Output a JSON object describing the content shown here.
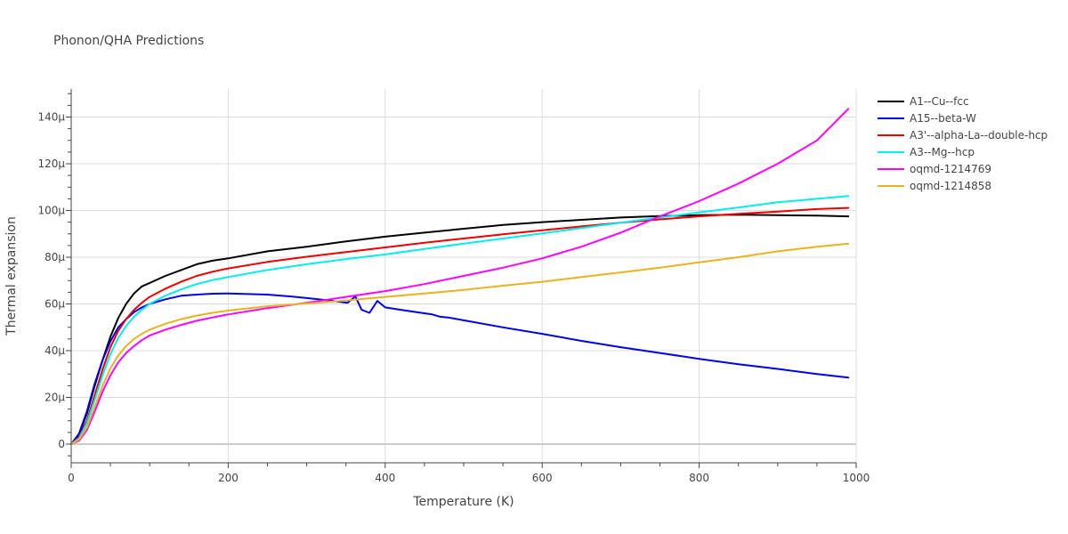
{
  "chart_data": {
    "type": "line",
    "title": "Phonon/QHA Predictions",
    "xlabel": "Temperature (K)",
    "ylabel": "Thermal expansion",
    "xlim": [
      0,
      1000
    ],
    "ylim": [
      -8e-06,
      0.000152
    ],
    "x_ticks": [
      0,
      200,
      400,
      600,
      800,
      1000
    ],
    "x_tick_labels": [
      "0",
      "200",
      "400",
      "600",
      "800",
      "1000"
    ],
    "y_ticks": [
      0,
      2e-05,
      4e-05,
      6e-05,
      8e-05,
      0.0001,
      0.00012,
      0.00014
    ],
    "y_tick_labels": [
      "0",
      "20µ",
      "40µ",
      "60µ",
      "80µ",
      "100µ",
      "120µ",
      "140µ"
    ],
    "grid": true,
    "legend_position": "right",
    "series": [
      {
        "name": "A1--Cu--fcc",
        "color": "#000000",
        "x": [
          0,
          10,
          20,
          30,
          40,
          50,
          60,
          70,
          80,
          90,
          100,
          120,
          140,
          160,
          180,
          200,
          250,
          300,
          350,
          400,
          450,
          500,
          550,
          600,
          650,
          700,
          750,
          800,
          850,
          900,
          950,
          990
        ],
        "y": [
          0,
          4e-06,
          1.3e-05,
          2.5e-05,
          3.6e-05,
          4.6e-05,
          5.4e-05,
          6e-05,
          6.45e-05,
          6.75e-05,
          6.9e-05,
          7.2e-05,
          7.45e-05,
          7.7e-05,
          7.85e-05,
          7.95e-05,
          8.25e-05,
          8.45e-05,
          8.68e-05,
          8.88e-05,
          9.05e-05,
          9.22e-05,
          9.38e-05,
          9.5e-05,
          9.6e-05,
          9.7e-05,
          9.76e-05,
          9.8e-05,
          9.82e-05,
          9.8e-05,
          9.78e-05,
          9.75e-05
        ]
      },
      {
        "name": "A15--beta-W",
        "color": "#0000ee",
        "x": [
          0,
          10,
          20,
          30,
          40,
          50,
          60,
          70,
          80,
          90,
          100,
          120,
          140,
          160,
          180,
          200,
          220,
          250,
          280,
          300,
          320,
          340,
          352,
          362,
          370,
          380,
          390,
          400,
          420,
          440,
          450,
          460,
          470,
          480,
          500,
          550,
          600,
          650,
          700,
          750,
          800,
          850,
          900,
          950,
          990
        ],
        "y": [
          0,
          4.5e-06,
          1.4e-05,
          2.6e-05,
          3.6e-05,
          4.4e-05,
          5e-05,
          5.35e-05,
          5.65e-05,
          5.85e-05,
          6e-05,
          6.2e-05,
          6.35e-05,
          6.4e-05,
          6.44e-05,
          6.45e-05,
          6.43e-05,
          6.4e-05,
          6.32e-05,
          6.25e-05,
          6.18e-05,
          6.1e-05,
          6.05e-05,
          6.32e-05,
          5.75e-05,
          5.62e-05,
          6.13e-05,
          5.85e-05,
          5.75e-05,
          5.65e-05,
          5.6e-05,
          5.55e-05,
          5.45e-05,
          5.42e-05,
          5.3e-05,
          5e-05,
          4.72e-05,
          4.42e-05,
          4.15e-05,
          3.9e-05,
          3.65e-05,
          3.42e-05,
          3.22e-05,
          3e-05,
          2.85e-05
        ]
      },
      {
        "name": "A3'--alpha-La--double-hcp",
        "color": "#ee0000",
        "x": [
          0,
          10,
          20,
          30,
          40,
          50,
          60,
          70,
          80,
          90,
          100,
          120,
          140,
          160,
          180,
          200,
          250,
          300,
          350,
          400,
          450,
          500,
          550,
          600,
          650,
          700,
          750,
          800,
          850,
          900,
          950,
          990
        ],
        "y": [
          0,
          3e-06,
          1e-05,
          2.1e-05,
          3.2e-05,
          4.15e-05,
          4.85e-05,
          5.35e-05,
          5.75e-05,
          6.05e-05,
          6.3e-05,
          6.65e-05,
          6.95e-05,
          7.2e-05,
          7.38e-05,
          7.52e-05,
          7.8e-05,
          8.02e-05,
          8.22e-05,
          8.42e-05,
          8.62e-05,
          8.8e-05,
          8.98e-05,
          9.15e-05,
          9.32e-05,
          9.48e-05,
          9.62e-05,
          9.75e-05,
          9.86e-05,
          9.95e-05,
          0.0001006,
          0.0001011
        ]
      },
      {
        "name": "A3--Mg--hcp",
        "color": "#00eeee",
        "x": [
          0,
          10,
          20,
          30,
          40,
          50,
          60,
          70,
          80,
          90,
          100,
          120,
          140,
          160,
          180,
          200,
          250,
          300,
          350,
          400,
          450,
          500,
          550,
          600,
          650,
          700,
          750,
          800,
          850,
          900,
          950,
          990
        ],
        "y": [
          0,
          2.5e-06,
          9e-06,
          1.9e-05,
          2.95e-05,
          3.85e-05,
          4.55e-05,
          5.05e-05,
          5.45e-05,
          5.75e-05,
          6e-05,
          6.35e-05,
          6.62e-05,
          6.85e-05,
          7.02e-05,
          7.15e-05,
          7.45e-05,
          7.7e-05,
          7.92e-05,
          8.12e-05,
          8.35e-05,
          8.58e-05,
          8.8e-05,
          9.02e-05,
          9.25e-05,
          9.48e-05,
          9.7e-05,
          9.92e-05,
          0.0001013,
          0.0001035,
          0.000105,
          0.0001062
        ]
      },
      {
        "name": "oqmd-1214769",
        "color": "#ff00ff",
        "x": [
          0,
          10,
          20,
          30,
          40,
          50,
          60,
          70,
          80,
          90,
          100,
          120,
          140,
          160,
          180,
          200,
          250,
          300,
          350,
          400,
          450,
          500,
          550,
          600,
          650,
          700,
          750,
          800,
          850,
          900,
          950,
          990
        ],
        "y": [
          0,
          1.5e-06,
          6e-06,
          1.4e-05,
          2.25e-05,
          2.95e-05,
          3.5e-05,
          3.9e-05,
          4.2e-05,
          4.45e-05,
          4.65e-05,
          4.9e-05,
          5.1e-05,
          5.28e-05,
          5.42e-05,
          5.55e-05,
          5.82e-05,
          6.05e-05,
          6.3e-05,
          6.55e-05,
          6.85e-05,
          7.2e-05,
          7.55e-05,
          7.95e-05,
          8.45e-05,
          9.05e-05,
          9.75e-05,
          0.000104,
          0.0001115,
          0.00012,
          0.00013,
          0.0001435
        ]
      },
      {
        "name": "oqmd-1214858",
        "color": "#e8b31f",
        "x": [
          0,
          10,
          20,
          30,
          40,
          50,
          60,
          70,
          80,
          90,
          100,
          120,
          140,
          160,
          180,
          200,
          250,
          300,
          350,
          400,
          450,
          500,
          550,
          600,
          650,
          700,
          750,
          800,
          850,
          900,
          950,
          990
        ],
        "y": [
          0,
          2e-06,
          7e-06,
          1.6e-05,
          2.5e-05,
          3.25e-05,
          3.8e-05,
          4.2e-05,
          4.5e-05,
          4.72e-05,
          4.9e-05,
          5.15e-05,
          5.35e-05,
          5.5e-05,
          5.62e-05,
          5.72e-05,
          5.9e-05,
          6.02e-05,
          6.15e-05,
          6.3e-05,
          6.45e-05,
          6.6e-05,
          6.78e-05,
          6.95e-05,
          7.15e-05,
          7.35e-05,
          7.55e-05,
          7.78e-05,
          8e-05,
          8.25e-05,
          8.45e-05,
          8.58e-05
        ]
      }
    ]
  }
}
